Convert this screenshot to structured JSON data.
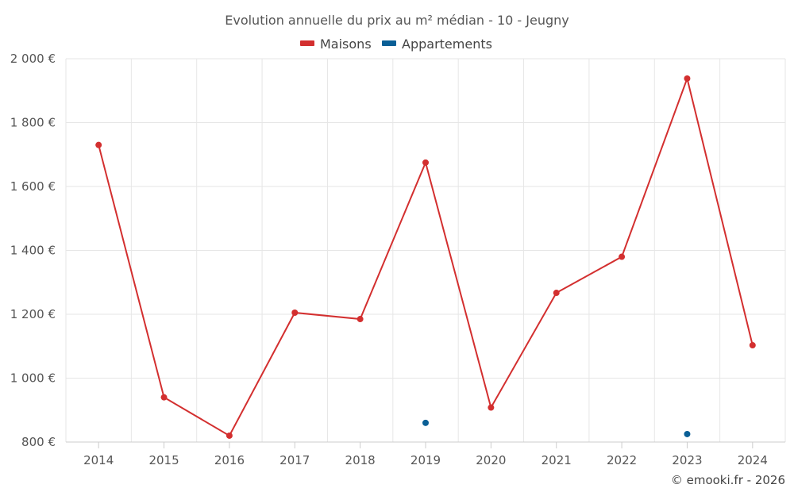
{
  "chart_data": {
    "type": "line",
    "title": "Evolution annuelle du prix au m² médian - 10 - Jeugny",
    "categories": [
      "2014",
      "2015",
      "2016",
      "2017",
      "2018",
      "2019",
      "2020",
      "2021",
      "2022",
      "2023",
      "2024"
    ],
    "ylim": [
      800,
      2000
    ],
    "yticks": [
      800,
      1000,
      1200,
      1400,
      1600,
      1800,
      2000
    ],
    "ytick_labels": [
      "800 €",
      "1 000 €",
      "1 200 €",
      "1 400 €",
      "1 600 €",
      "1 800 €",
      "2 000 €"
    ],
    "grid": true,
    "legend_position": "top-center",
    "series": [
      {
        "name": "Maisons",
        "color": "#d32f2f",
        "values": [
          1730,
          940,
          820,
          1205,
          1185,
          1675,
          908,
          1267,
          1380,
          1938,
          1103
        ]
      },
      {
        "name": "Appartements",
        "color": "#0a5f96",
        "values": [
          null,
          null,
          null,
          null,
          null,
          860,
          null,
          null,
          null,
          825,
          null
        ]
      }
    ]
  },
  "credit": "© emooki.fr - 2026"
}
